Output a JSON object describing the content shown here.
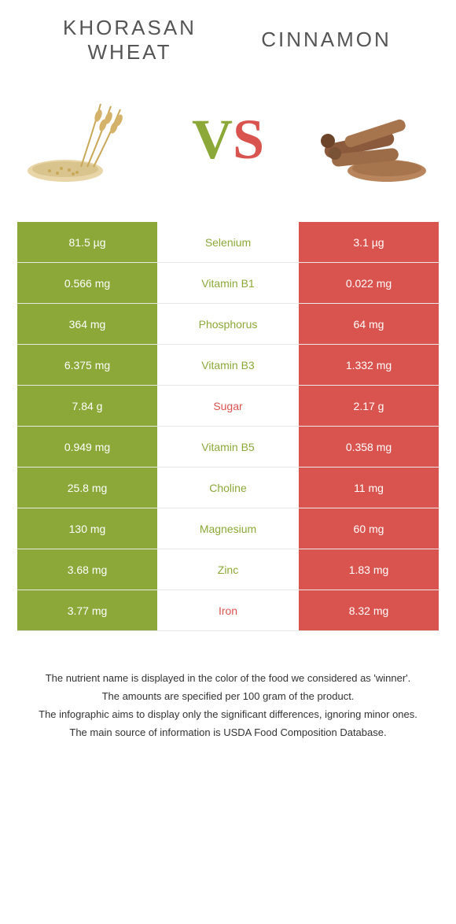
{
  "left_title": "Khorasan wheat",
  "right_title": "Cinnamon",
  "vs": {
    "v": "V",
    "s": "S"
  },
  "colors": {
    "green": "#8ba838",
    "red": "#d9534f",
    "row_border": "#e8e8e8",
    "title": "#555555",
    "footer": "#333333"
  },
  "rows": [
    {
      "left": "81.5 µg",
      "name": "Selenium",
      "right": "3.1 µg",
      "winner": "green"
    },
    {
      "left": "0.566 mg",
      "name": "Vitamin B1",
      "right": "0.022 mg",
      "winner": "green"
    },
    {
      "left": "364 mg",
      "name": "Phosphorus",
      "right": "64 mg",
      "winner": "green"
    },
    {
      "left": "6.375 mg",
      "name": "Vitamin B3",
      "right": "1.332 mg",
      "winner": "green"
    },
    {
      "left": "7.84 g",
      "name": "Sugar",
      "right": "2.17 g",
      "winner": "red"
    },
    {
      "left": "0.949 mg",
      "name": "Vitamin B5",
      "right": "0.358 mg",
      "winner": "green"
    },
    {
      "left": "25.8 mg",
      "name": "Choline",
      "right": "11 mg",
      "winner": "green"
    },
    {
      "left": "130 mg",
      "name": "Magnesium",
      "right": "60 mg",
      "winner": "green"
    },
    {
      "left": "3.68 mg",
      "name": "Zinc",
      "right": "1.83 mg",
      "winner": "green"
    },
    {
      "left": "3.77 mg",
      "name": "Iron",
      "right": "8.32 mg",
      "winner": "red"
    }
  ],
  "footer": [
    "The nutrient name is displayed in the color of the food we considered as 'winner'.",
    "The amounts are specified per 100 gram of the product.",
    "The infographic aims to display only the significant differences, ignoring minor ones.",
    "The main source of information is USDA Food Composition Database."
  ]
}
